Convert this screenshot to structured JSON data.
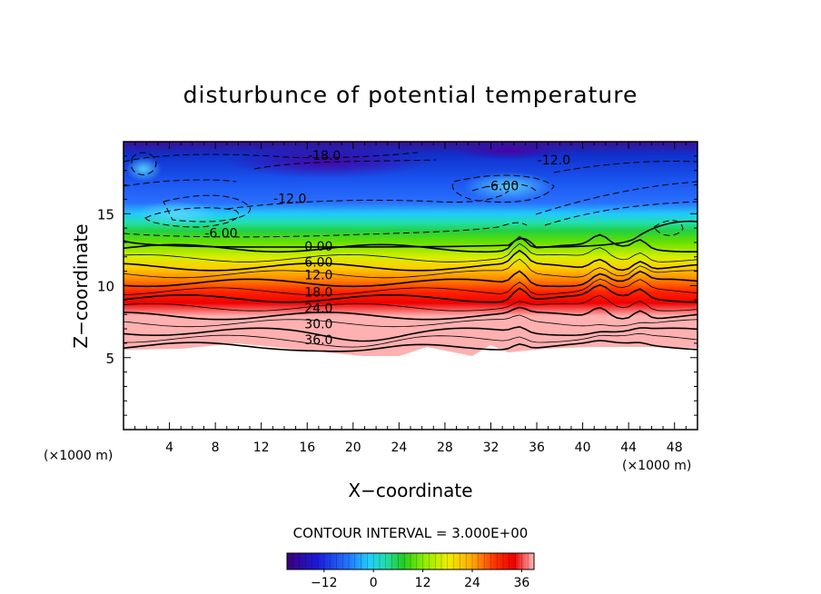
{
  "chart_data": {
    "type": "contour",
    "title": "disturbunce of potential temperature",
    "xlabel": "X−coordinate",
    "ylabel": "Z−coordinate",
    "x_unit": "(×1000 m)",
    "z_unit": "(×1000 m)",
    "xlim": [
      0,
      50
    ],
    "ylim": [
      0,
      20
    ],
    "x_ticks": [
      4,
      8,
      12,
      16,
      20,
      24,
      28,
      32,
      36,
      40,
      44,
      48
    ],
    "y_ticks": [
      5,
      10,
      15
    ],
    "contour_interval_label": "CONTOUR INTERVAL = 3.000E+00",
    "contour_labels": [
      {
        "text": "-18.0",
        "x": 17.5,
        "z": 18.8
      },
      {
        "text": "-12.0",
        "x": 37.5,
        "z": 18.5
      },
      {
        "text": "-6.00",
        "x": 33.0,
        "z": 16.7
      },
      {
        "text": "-12.0",
        "x": 14.5,
        "z": 15.8
      },
      {
        "text": "-6.00",
        "x": 8.5,
        "z": 13.4
      },
      {
        "text": "0.00",
        "x": 17.0,
        "z": 12.5
      },
      {
        "text": "6.00",
        "x": 17.0,
        "z": 11.4
      },
      {
        "text": "12.0",
        "x": 17.0,
        "z": 10.5
      },
      {
        "text": "18.0",
        "x": 17.0,
        "z": 9.3
      },
      {
        "text": "24.0",
        "x": 17.0,
        "z": 8.2
      },
      {
        "text": "30.0",
        "x": 17.0,
        "z": 7.1
      },
      {
        "text": "36.0",
        "x": 17.0,
        "z": 6.0
      }
    ],
    "colorbar": {
      "range": [
        -21,
        39
      ],
      "ticks": [
        -12,
        0,
        12,
        24,
        36
      ],
      "colors": [
        "#3c007a",
        "#1a1ad8",
        "#2277ff",
        "#22ccff",
        "#22ddaa",
        "#22cc22",
        "#88ee00",
        "#eeee00",
        "#ffaa00",
        "#ff3300",
        "#ee0000",
        "#ffbbbb"
      ]
    },
    "grid": false
  }
}
